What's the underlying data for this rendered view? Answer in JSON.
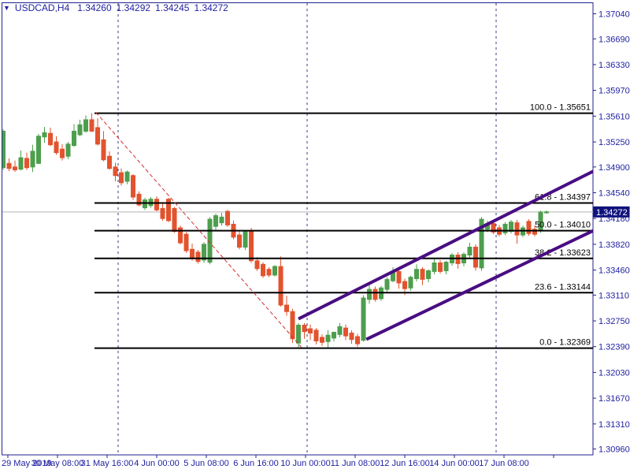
{
  "header": {
    "symbol_period": "USDCAD,H4",
    "open": "1.34260",
    "high": "1.34292",
    "low": "1.34245",
    "close": "1.34272"
  },
  "colors": {
    "background": "#ffffff",
    "frame": "#22228f",
    "text": "#2222a2",
    "bull": "#4d9e4d",
    "bear": "#e2532e",
    "fib_line": "#000000",
    "fib_text": "#000000",
    "channel": "#4a0d82",
    "trendline": "#d42e2e",
    "separator": "#3a3a8c",
    "price_line": "#b2b2b2",
    "price_tag_bg": "#10127c",
    "price_tag_text": "#ffffff"
  },
  "current_price": {
    "label": "1.34272",
    "value": 1.34272
  },
  "chart_data": {
    "type": "candlestick",
    "symbol": "USDCAD",
    "timeframe": "H4",
    "y_tick_labels": [
      "1.37040",
      "1.36690",
      "1.36330",
      "1.35970",
      "1.35610",
      "1.35250",
      "1.34900",
      "1.34540",
      "1.34180",
      "1.33820",
      "1.33460",
      "1.33110",
      "1.32750",
      "1.32390",
      "1.32030",
      "1.31670",
      "1.31310",
      "1.30960"
    ],
    "x_tick_labels": [
      "29 May 2019",
      "30 May 08:00",
      "31 May 16:00",
      "4 Jun 00:00",
      "5 Jun 08:00",
      "6 Jun 16:00",
      "10 Jun 00:00",
      "11 Jun 08:00",
      "12 Jun 16:00",
      "14 Jun 00:00",
      "17 Jun 08:00"
    ],
    "candles": [
      [
        1.3489,
        1.3543,
        1.3486,
        1.354
      ],
      [
        1.3495,
        1.3502,
        1.3484,
        1.3488
      ],
      [
        1.349,
        1.3499,
        1.3483,
        1.3486
      ],
      [
        1.3487,
        1.3513,
        1.3485,
        1.3503
      ],
      [
        1.3502,
        1.351,
        1.3486,
        1.3489
      ],
      [
        1.349,
        1.3521,
        1.3483,
        1.3512
      ],
      [
        1.3495,
        1.3536,
        1.3494,
        1.3533
      ],
      [
        1.3532,
        1.3546,
        1.3524,
        1.3538
      ],
      [
        1.3537,
        1.3545,
        1.3519,
        1.3521
      ],
      [
        1.3525,
        1.3533,
        1.3507,
        1.351
      ],
      [
        1.3515,
        1.3522,
        1.3499,
        1.3503
      ],
      [
        1.3505,
        1.3525,
        1.3501,
        1.3522
      ],
      [
        1.352,
        1.355,
        1.3518,
        1.354
      ],
      [
        1.3535,
        1.3556,
        1.3533,
        1.3549
      ],
      [
        1.354,
        1.3562,
        1.3538,
        1.3556
      ],
      [
        1.3556,
        1.35651,
        1.3539,
        1.354
      ],
      [
        1.3545,
        1.3558,
        1.352,
        1.3522
      ],
      [
        1.3528,
        1.354,
        1.3498,
        1.35
      ],
      [
        1.3505,
        1.3512,
        1.3486,
        1.3488
      ],
      [
        1.349,
        1.3496,
        1.347,
        1.3478
      ],
      [
        1.3482,
        1.3488,
        1.3464,
        1.3468
      ],
      [
        1.347,
        1.3485,
        1.3466,
        1.3483
      ],
      [
        1.3478,
        1.348,
        1.3444,
        1.3448
      ],
      [
        1.3452,
        1.3456,
        1.3435,
        1.3437
      ],
      [
        1.3433,
        1.3447,
        1.343,
        1.3444
      ],
      [
        1.3436,
        1.3448,
        1.3433,
        1.3445
      ],
      [
        1.3445,
        1.3449,
        1.3428,
        1.343
      ],
      [
        1.3432,
        1.344,
        1.3415,
        1.3418
      ],
      [
        1.3445,
        1.3447,
        1.3413,
        1.3415
      ],
      [
        1.3432,
        1.3434,
        1.3398,
        1.34
      ],
      [
        1.3405,
        1.3408,
        1.3382,
        1.3384
      ],
      [
        1.3396,
        1.3399,
        1.337,
        1.3373
      ],
      [
        1.3375,
        1.3383,
        1.3359,
        1.3362
      ],
      [
        1.3371,
        1.3374,
        1.3355,
        1.3358
      ],
      [
        1.336,
        1.3385,
        1.3356,
        1.3382
      ],
      [
        1.3357,
        1.342,
        1.3354,
        1.3417
      ],
      [
        1.3407,
        1.3425,
        1.3402,
        1.3422
      ],
      [
        1.3412,
        1.3426,
        1.3408,
        1.342
      ],
      [
        1.3428,
        1.343,
        1.3406,
        1.3409
      ],
      [
        1.341,
        1.3415,
        1.3389,
        1.3392
      ],
      [
        1.3395,
        1.34,
        1.3375,
        1.3378
      ],
      [
        1.3378,
        1.3402,
        1.3374,
        1.34
      ],
      [
        1.34,
        1.3405,
        1.3356,
        1.3359
      ],
      [
        1.3359,
        1.3364,
        1.3345,
        1.3348
      ],
      [
        1.3354,
        1.3357,
        1.3335,
        1.3338
      ],
      [
        1.3347,
        1.335,
        1.3336,
        1.3339
      ],
      [
        1.3339,
        1.3353,
        1.3337,
        1.3351
      ],
      [
        1.3351,
        1.3365,
        1.3295,
        1.3297
      ],
      [
        1.3297,
        1.331,
        1.3282,
        1.3288
      ],
      [
        1.3288,
        1.3292,
        1.3244,
        1.325
      ],
      [
        1.3244,
        1.3272,
        1.32369,
        1.3269
      ],
      [
        1.3269,
        1.3272,
        1.325,
        1.326
      ],
      [
        1.3264,
        1.327,
        1.3248,
        1.3258
      ],
      [
        1.3262,
        1.3265,
        1.3242,
        1.3247
      ],
      [
        1.3252,
        1.3256,
        1.324,
        1.3245
      ],
      [
        1.3246,
        1.3262,
        1.3238,
        1.3255
      ],
      [
        1.3251,
        1.326,
        1.3246,
        1.3259
      ],
      [
        1.3256,
        1.3272,
        1.3252,
        1.3267
      ],
      [
        1.3265,
        1.327,
        1.3248,
        1.3254
      ],
      [
        1.3258,
        1.3262,
        1.3243,
        1.3249
      ],
      [
        1.3253,
        1.3257,
        1.3239,
        1.3243
      ],
      [
        1.3248,
        1.3311,
        1.3246,
        1.3307
      ],
      [
        1.3305,
        1.3325,
        1.3299,
        1.3319
      ],
      [
        1.3319,
        1.3323,
        1.3302,
        1.3305
      ],
      [
        1.3306,
        1.3324,
        1.3303,
        1.3321
      ],
      [
        1.3319,
        1.3336,
        1.3315,
        1.3333
      ],
      [
        1.3331,
        1.335,
        1.3329,
        1.3344
      ],
      [
        1.3344,
        1.3347,
        1.332,
        1.3328
      ],
      [
        1.333,
        1.3334,
        1.3311,
        1.332
      ],
      [
        1.3321,
        1.3338,
        1.3317,
        1.3336
      ],
      [
        1.3334,
        1.3354,
        1.333,
        1.3347
      ],
      [
        1.3347,
        1.335,
        1.3325,
        1.3333
      ],
      [
        1.3334,
        1.3347,
        1.3329,
        1.3345
      ],
      [
        1.3344,
        1.3363,
        1.334,
        1.3356
      ],
      [
        1.3356,
        1.336,
        1.3341,
        1.3344
      ],
      [
        1.3345,
        1.3359,
        1.334,
        1.3357
      ],
      [
        1.3356,
        1.337,
        1.3352,
        1.3367
      ],
      [
        1.3367,
        1.3371,
        1.3348,
        1.3355
      ],
      [
        1.3356,
        1.3371,
        1.3351,
        1.3368
      ],
      [
        1.3367,
        1.3384,
        1.3363,
        1.3378
      ],
      [
        1.3378,
        1.3382,
        1.3345,
        1.335
      ],
      [
        1.3349,
        1.342,
        1.3345,
        1.3417
      ],
      [
        1.3403,
        1.3415,
        1.3399,
        1.3411
      ],
      [
        1.3411,
        1.3416,
        1.3396,
        1.3399
      ],
      [
        1.3405,
        1.3409,
        1.3393,
        1.3396
      ],
      [
        1.3398,
        1.3413,
        1.3395,
        1.341
      ],
      [
        1.34,
        1.3416,
        1.3397,
        1.3413
      ],
      [
        1.3412,
        1.3416,
        1.3383,
        1.3395
      ],
      [
        1.3395,
        1.3408,
        1.3392,
        1.3405
      ],
      [
        1.3414,
        1.3417,
        1.3394,
        1.3397
      ],
      [
        1.3403,
        1.3408,
        1.3393,
        1.3396
      ],
      [
        1.3401,
        1.3429,
        1.3398,
        1.3427
      ],
      [
        1.3426,
        1.34292,
        1.34245,
        1.34272
      ]
    ],
    "objects": {
      "fibonacci_levels": [
        {
          "label": "100.0 - 1.35651",
          "price": 1.35651
        },
        {
          "label": "61.8 - 1.34397",
          "price": 1.34397
        },
        {
          "label": "50.0 - 1.34010",
          "price": 1.3401
        },
        {
          "label": "38.2 - 1.33623",
          "price": 1.33623
        },
        {
          "label": "23.6 - 1.33144",
          "price": 1.33144
        },
        {
          "label": "0.0 - 1.32369",
          "price": 1.32369
        }
      ],
      "trendline": {
        "i1": 15.7,
        "p1": 1.35663,
        "i2": 50.5,
        "p2": 1.32381
      },
      "channel": [
        {
          "i1": 50.0,
          "p1": 1.32778,
          "i2": 99.9,
          "p2": 1.3484
        },
        {
          "i1": 61.5,
          "p1": 1.32492,
          "i2": 99.9,
          "p2": 1.3401
        }
      ],
      "period_separators": [
        19,
        51,
        83
      ]
    }
  }
}
